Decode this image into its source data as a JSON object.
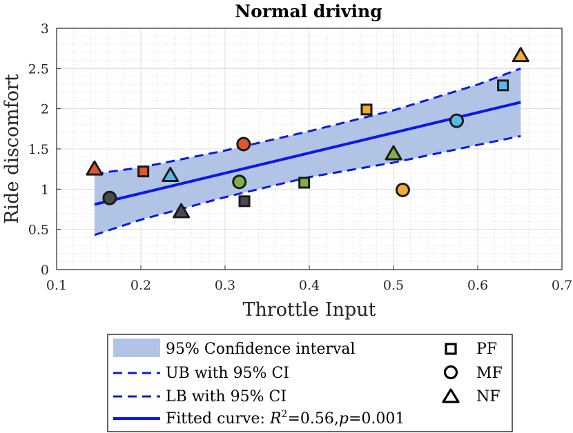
{
  "chart_data": {
    "type": "scatter",
    "title": "Normal driving",
    "xlabel": "Throttle Input",
    "ylabel": "Ride discomfort",
    "xlim": [
      0.1,
      0.7
    ],
    "ylim": [
      0,
      3
    ],
    "xticks": [
      "0.1",
      "0.2",
      "0.3",
      "0.4",
      "0.5",
      "0.6",
      "0.7"
    ],
    "yticks": [
      "0",
      "0.5",
      "1",
      "1.5",
      "2",
      "2.5",
      "3"
    ],
    "grid": true,
    "minor_grid": true,
    "legend": {
      "placement": "bottom-outside",
      "entries": [
        {
          "label": "95% Confidence interval",
          "style": "band"
        },
        {
          "label": "UB with 95% CI",
          "style": "dashed"
        },
        {
          "label": "LB with 95% CI",
          "style": "dashed"
        },
        {
          "label": "Fitted curve: ",
          "r2_symbol": "R",
          "r2_sup": "2",
          "r2_value": "=0.56,",
          "p_symbol": "p",
          "p_value": "=0.001",
          "style": "solid"
        }
      ],
      "marker_entries": [
        {
          "label": "PF",
          "shape": "square"
        },
        {
          "label": "MF",
          "shape": "circle"
        },
        {
          "label": "NF",
          "shape": "triangle"
        }
      ]
    },
    "fit": {
      "x": [
        0.145,
        0.651
      ],
      "y": [
        0.81,
        2.08
      ]
    },
    "upper_bound": {
      "x": [
        0.145,
        0.2,
        0.3,
        0.4,
        0.5,
        0.6,
        0.651
      ],
      "y": [
        1.19,
        1.27,
        1.48,
        1.72,
        1.98,
        2.3,
        2.5
      ]
    },
    "lower_bound": {
      "x": [
        0.145,
        0.2,
        0.3,
        0.4,
        0.5,
        0.6,
        0.651
      ],
      "y": [
        0.43,
        0.62,
        0.9,
        1.15,
        1.33,
        1.55,
        1.66
      ]
    },
    "colors": {
      "fit_line": "#0b19e6",
      "band": "#b1c4e6",
      "orange": "#e0562a",
      "dark": "#4a4a4a",
      "blue": "#59b9e6",
      "green": "#7faf4a",
      "yellow": "#f2ab33"
    },
    "points": [
      {
        "series": "PF",
        "shape": "square",
        "x": 0.203,
        "y": 1.22,
        "color": "orange"
      },
      {
        "series": "PF",
        "shape": "square",
        "x": 0.323,
        "y": 0.85,
        "color": "dark"
      },
      {
        "series": "PF",
        "shape": "square",
        "x": 0.394,
        "y": 1.08,
        "color": "green"
      },
      {
        "series": "PF",
        "shape": "square",
        "x": 0.468,
        "y": 1.99,
        "color": "yellow"
      },
      {
        "series": "PF",
        "shape": "square",
        "x": 0.63,
        "y": 2.29,
        "color": "blue"
      },
      {
        "series": "MF",
        "shape": "circle",
        "x": 0.163,
        "y": 0.89,
        "color": "dark"
      },
      {
        "series": "MF",
        "shape": "circle",
        "x": 0.317,
        "y": 1.09,
        "color": "green"
      },
      {
        "series": "MF",
        "shape": "circle",
        "x": 0.322,
        "y": 1.56,
        "color": "orange"
      },
      {
        "series": "MF",
        "shape": "circle",
        "x": 0.511,
        "y": 0.99,
        "color": "yellow"
      },
      {
        "series": "MF",
        "shape": "circle",
        "x": 0.575,
        "y": 1.85,
        "color": "blue"
      },
      {
        "series": "NF",
        "shape": "triangle",
        "x": 0.145,
        "y": 1.25,
        "color": "orange"
      },
      {
        "series": "NF",
        "shape": "triangle",
        "x": 0.235,
        "y": 1.17,
        "color": "blue"
      },
      {
        "series": "NF",
        "shape": "triangle",
        "x": 0.248,
        "y": 0.72,
        "color": "dark"
      },
      {
        "series": "NF",
        "shape": "triangle",
        "x": 0.5,
        "y": 1.44,
        "color": "green"
      },
      {
        "series": "NF",
        "shape": "triangle",
        "x": 0.651,
        "y": 2.66,
        "color": "yellow"
      }
    ]
  }
}
